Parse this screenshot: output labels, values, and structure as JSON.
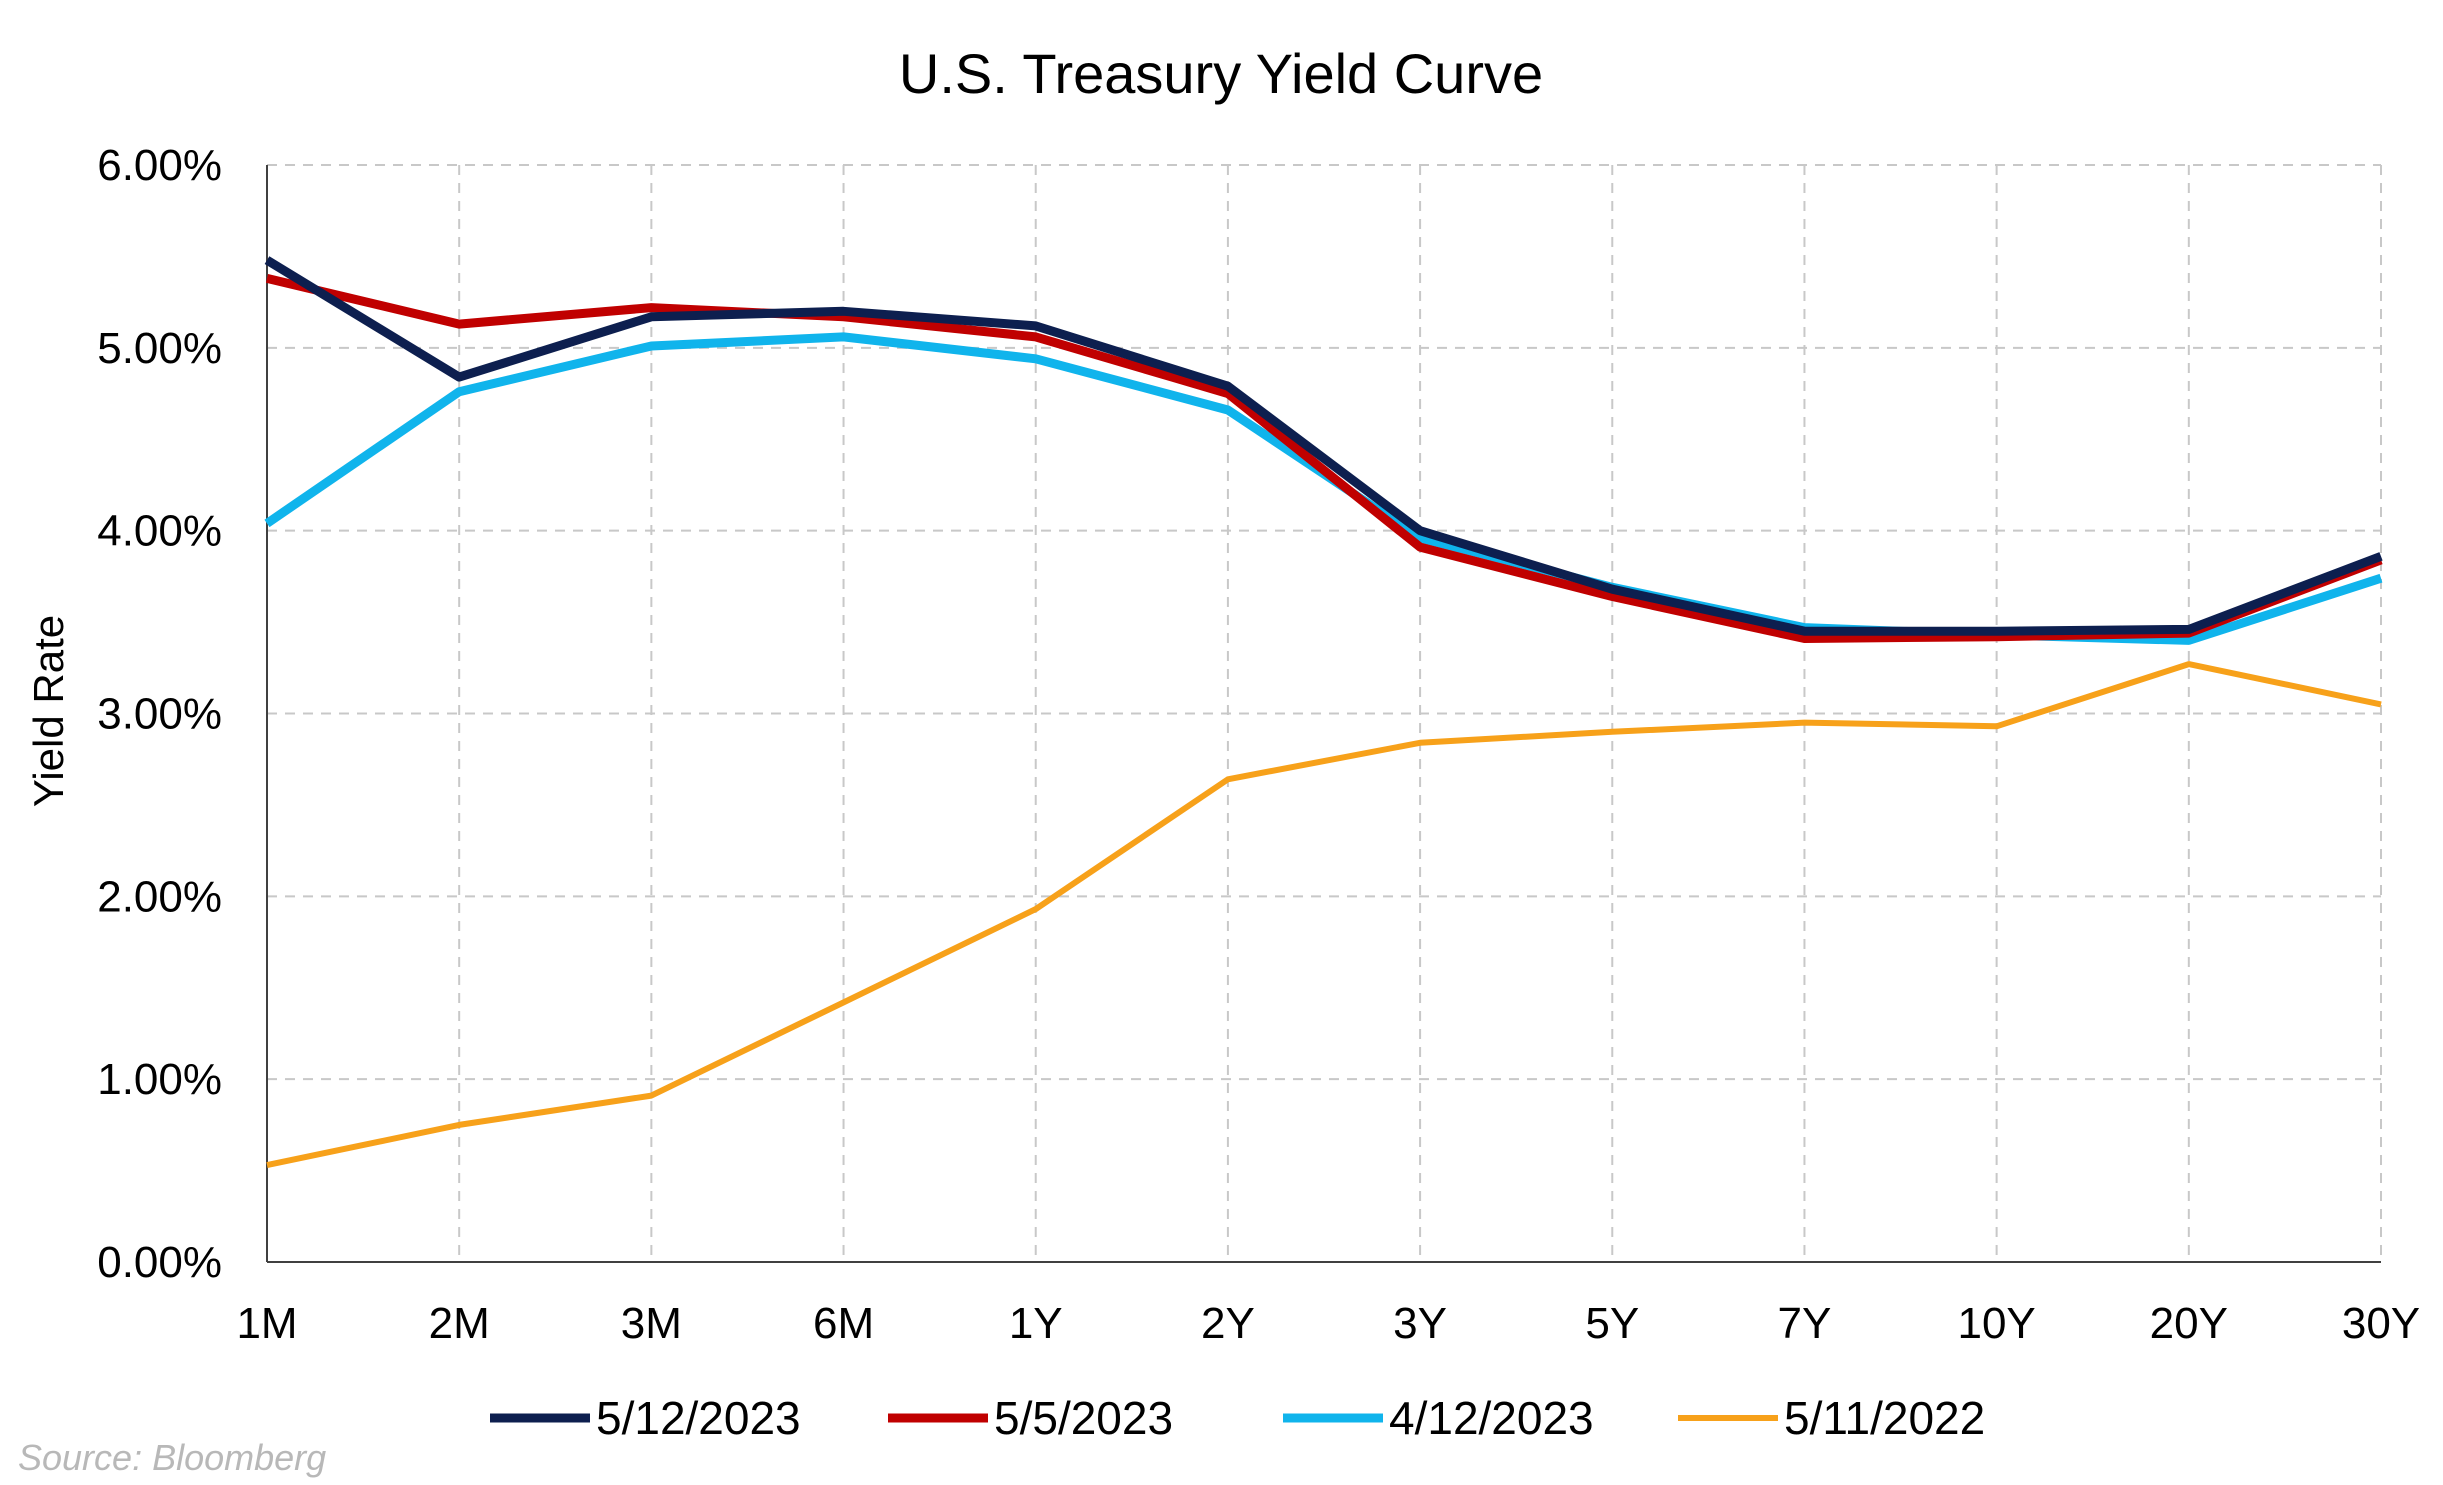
{
  "chart_data": {
    "type": "line",
    "title": "U.S. Treasury Yield Curve",
    "xlabel": "",
    "ylabel": "Yield Rate",
    "categories": [
      "1M",
      "2M",
      "3M",
      "6M",
      "1Y",
      "2Y",
      "3Y",
      "5Y",
      "7Y",
      "10Y",
      "20Y",
      "30Y"
    ],
    "ylim": [
      0,
      6
    ],
    "yticks": [
      {
        "value": 0,
        "label": "0.00%"
      },
      {
        "value": 1,
        "label": "1.00%"
      },
      {
        "value": 2,
        "label": "2.00%"
      },
      {
        "value": 3,
        "label": "3.00%"
      },
      {
        "value": 4,
        "label": "4.00%"
      },
      {
        "value": 5,
        "label": "5.00%"
      },
      {
        "value": 6,
        "label": "6.00%"
      }
    ],
    "grid": true,
    "legend_position": "bottom",
    "series": [
      {
        "name": "5/12/2023",
        "color": "#0d1f4f",
        "values": [
          5.48,
          4.84,
          5.17,
          5.2,
          5.12,
          4.79,
          4.0,
          3.68,
          3.45,
          3.45,
          3.46,
          3.86
        ]
      },
      {
        "name": "5/5/2023",
        "color": "#c00000",
        "values": [
          5.38,
          5.13,
          5.22,
          5.17,
          5.06,
          4.75,
          3.91,
          3.64,
          3.41,
          3.42,
          3.44,
          3.84
        ]
      },
      {
        "name": "4/12/2023",
        "color": "#10b4ec",
        "values": [
          4.04,
          4.76,
          5.01,
          5.06,
          4.94,
          4.66,
          3.96,
          3.69,
          3.47,
          3.43,
          3.4,
          3.74
        ]
      },
      {
        "name": "5/11/2022",
        "color": "#f7a11a",
        "values": [
          0.53,
          0.75,
          0.91,
          1.42,
          1.93,
          2.64,
          2.84,
          2.9,
          2.95,
          2.93,
          3.27,
          3.05
        ]
      }
    ]
  },
  "source": "Source: Bloomberg"
}
